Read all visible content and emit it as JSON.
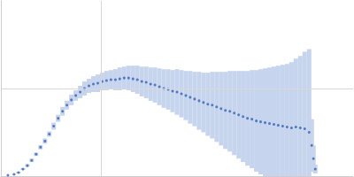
{
  "chart_data": {
    "type": "scatter",
    "x": [
      0.007,
      0.0131,
      0.0175,
      0.0219,
      0.0263,
      0.0306,
      0.035,
      0.0394,
      0.0438,
      0.0481,
      0.0525,
      0.0569,
      0.0613,
      0.0656,
      0.07,
      0.0744,
      0.0788,
      0.0831,
      0.0875,
      0.0919,
      0.0963,
      0.1006,
      0.105,
      0.1094,
      0.1138,
      0.1181,
      0.1225,
      0.1269,
      0.1313,
      0.1356,
      0.14,
      0.1444,
      0.1488,
      0.1531,
      0.1575,
      0.1619,
      0.1663,
      0.1706,
      0.175,
      0.1794,
      0.1838,
      0.1881,
      0.1925,
      0.1969,
      0.2013,
      0.2056,
      0.21,
      0.2144,
      0.2188,
      0.2231,
      0.2275,
      0.2319,
      0.2363,
      0.2406,
      0.245,
      0.2494,
      0.2538,
      0.2581,
      0.2625,
      0.2669,
      0.2713,
      0.2756,
      0.28,
      0.2844,
      0.2888,
      0.2931,
      0.2975,
      0.3019,
      0.3063,
      0.3089,
      0.3106,
      0.3124
    ],
    "values": [
      0.01,
      0.02,
      0.04,
      0.08,
      0.12,
      0.18,
      0.25,
      0.33,
      0.4,
      0.48,
      0.57,
      0.66,
      0.74,
      0.81,
      0.87,
      0.92,
      0.96,
      1.0,
      1.03,
      1.05,
      1.06,
      1.08,
      1.09,
      1.1,
      1.1,
      1.11,
      1.12,
      1.12,
      1.11,
      1.1,
      1.08,
      1.07,
      1.05,
      1.04,
      1.02,
      1.0,
      0.99,
      0.97,
      0.96,
      0.94,
      0.92,
      0.9,
      0.88,
      0.86,
      0.84,
      0.82,
      0.81,
      0.79,
      0.77,
      0.75,
      0.74,
      0.72,
      0.7,
      0.68,
      0.66,
      0.65,
      0.63,
      0.62,
      0.61,
      0.6,
      0.59,
      0.58,
      0.57,
      0.56,
      0.55,
      0.56,
      0.55,
      0.54,
      0.5,
      0.35,
      0.2,
      0.08
    ],
    "errors": [
      0,
      0.005,
      0.01,
      0.01,
      0.015,
      0.02,
      0.02,
      0.025,
      0.03,
      0.03,
      0.04,
      0.04,
      0.05,
      0.05,
      0.06,
      0.06,
      0.07,
      0.08,
      0.08,
      0.09,
      0.1,
      0.1,
      0.11,
      0.11,
      0.12,
      0.13,
      0.13,
      0.14,
      0.15,
      0.16,
      0.17,
      0.18,
      0.19,
      0.2,
      0.21,
      0.22,
      0.23,
      0.24,
      0.26,
      0.27,
      0.28,
      0.3,
      0.31,
      0.33,
      0.34,
      0.36,
      0.38,
      0.4,
      0.42,
      0.44,
      0.46,
      0.48,
      0.5,
      0.52,
      0.54,
      0.56,
      0.58,
      0.6,
      0.62,
      0.64,
      0.66,
      0.68,
      0.7,
      0.72,
      0.75,
      0.78,
      0.82,
      0.88,
      0.95,
      0.3,
      0.15,
      0.05
    ],
    "color": "#3461b5",
    "marker": "circle",
    "xlim": [
      0,
      0.35
    ],
    "xticks": [
      0.1
    ],
    "ylim": [
      0,
      2
    ],
    "yticks": [
      1
    ],
    "grid": true,
    "tick_labels": false
  }
}
